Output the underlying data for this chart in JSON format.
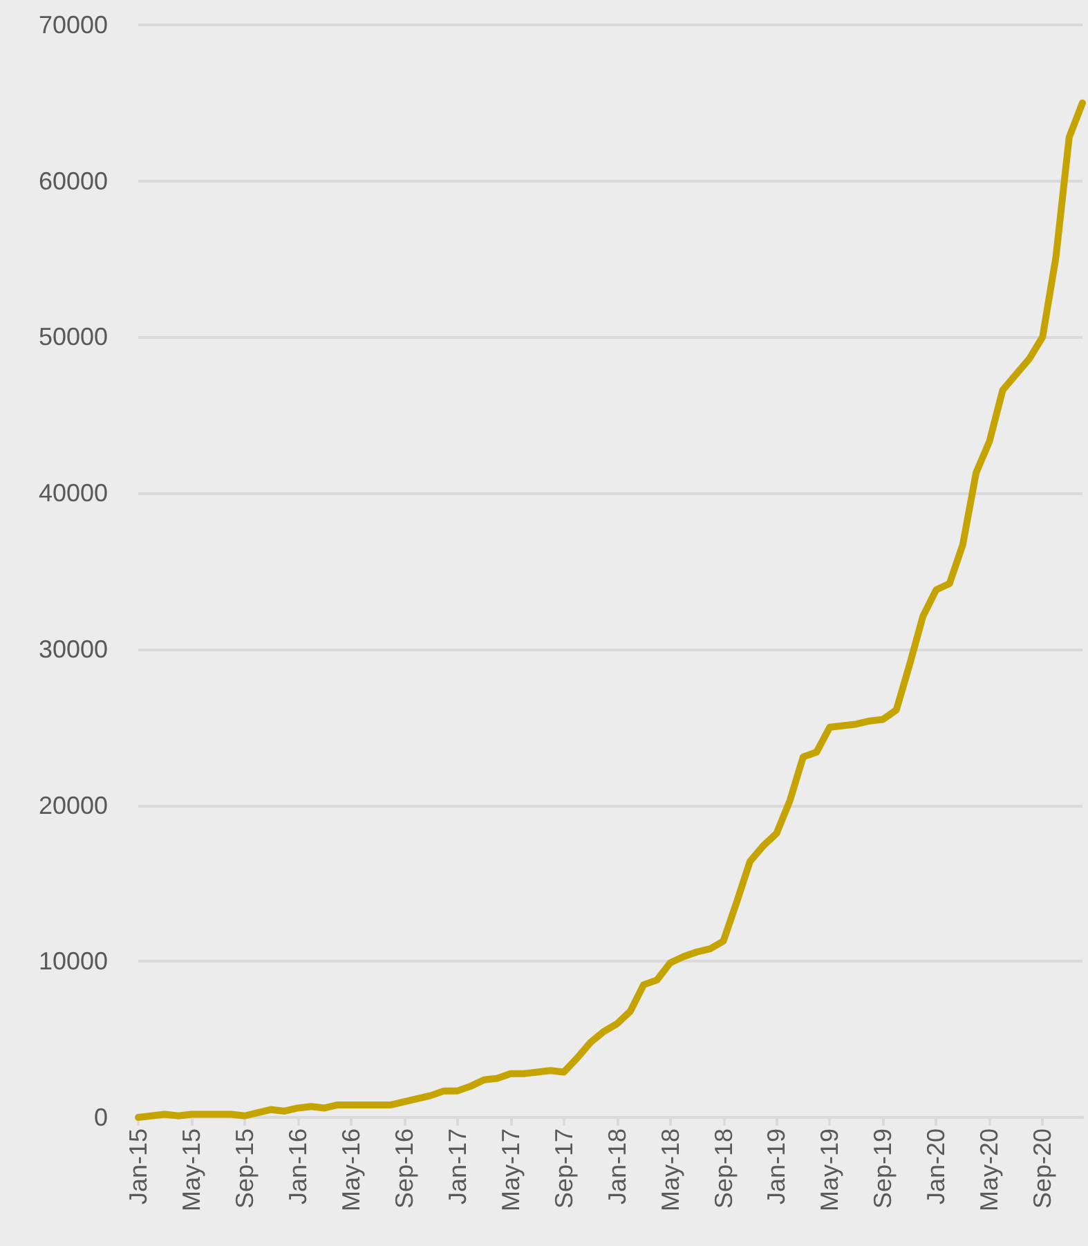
{
  "chart_data": {
    "type": "line",
    "categories": [
      "Jan-15",
      null,
      null,
      null,
      "May-15",
      null,
      null,
      null,
      "Sep-15",
      null,
      null,
      null,
      "Jan-16",
      null,
      null,
      null,
      "May-16",
      null,
      null,
      null,
      "Sep-16",
      null,
      null,
      null,
      "Jan-17",
      null,
      null,
      null,
      "May-17",
      null,
      null,
      null,
      "Sep-17",
      null,
      null,
      null,
      "Jan-18",
      null,
      null,
      null,
      "May-18",
      null,
      null,
      null,
      "Sep-18",
      null,
      null,
      null,
      "Jan-19",
      null,
      null,
      null,
      "May-19",
      null,
      null,
      null,
      "Sep-19",
      null,
      null,
      null,
      "Jan-20",
      null,
      null,
      null,
      "May-20",
      null,
      null,
      null,
      "Sep-20",
      null,
      null,
      null
    ],
    "series": [
      {
        "color": "#c5a300",
        "values": [
          0,
          100,
          200,
          100,
          200,
          200,
          200,
          200,
          100,
          300,
          500,
          400,
          600,
          700,
          600,
          800,
          800,
          800,
          800,
          800,
          1000,
          1200,
          1400,
          1700,
          1700,
          2000,
          2400,
          2500,
          2800,
          2800,
          2900,
          3000,
          2900,
          3800,
          4800,
          5500,
          6000,
          6800,
          8500,
          8800,
          9900,
          10300,
          10600,
          10800,
          11300,
          13800,
          16400,
          17400,
          18200,
          20300,
          23100,
          23400,
          25000,
          25100,
          25200,
          25400,
          25500,
          26100,
          29000,
          32100,
          33800,
          34200,
          36700,
          41300,
          43300,
          46600,
          47600,
          48600,
          50000,
          55100,
          62800,
          65000
        ]
      }
    ],
    "ylim": [
      0,
      70000
    ],
    "yticks": [
      0,
      10000,
      20000,
      30000,
      40000,
      50000,
      60000,
      70000
    ],
    "grid": "y",
    "marker": "none",
    "line_style": "solid"
  }
}
